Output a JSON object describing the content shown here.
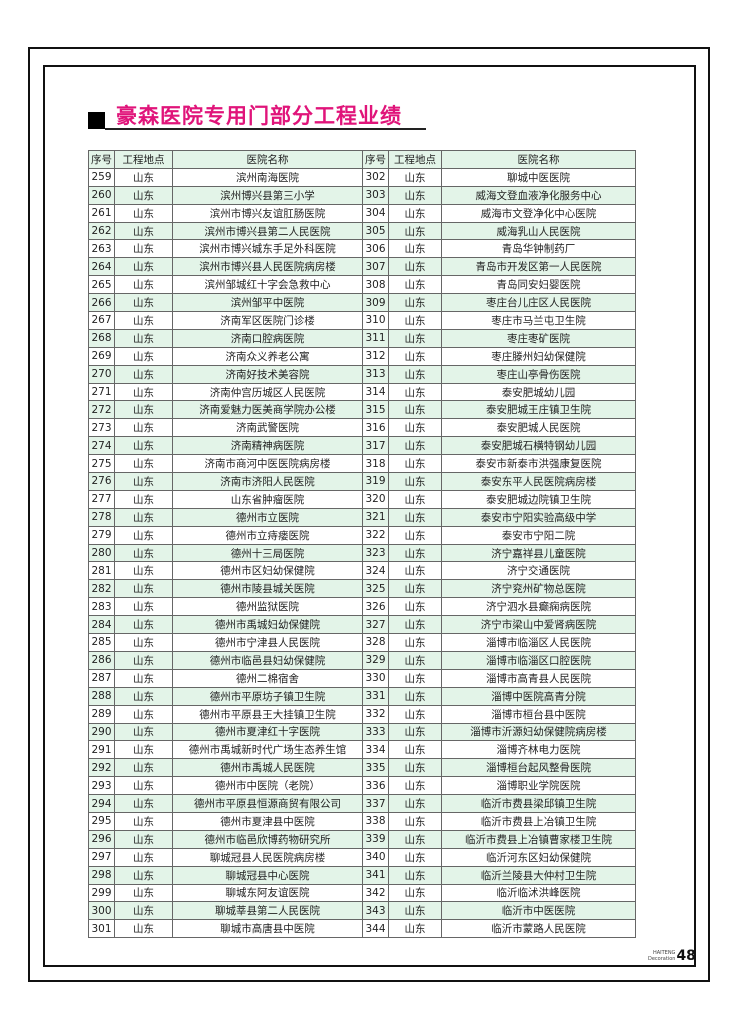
{
  "title": "豪森医院专用门部分工程业绩",
  "table": {
    "headers": [
      "序号",
      "工程地点",
      "医院名称",
      "序号",
      "工程地点",
      "医院名称"
    ],
    "rows": [
      [
        "259",
        "山东",
        "滨州南海医院",
        "302",
        "山东",
        "聊城中医医院"
      ],
      [
        "260",
        "山东",
        "滨州博兴县第三小学",
        "303",
        "山东",
        "威海文登血液净化服务中心"
      ],
      [
        "261",
        "山东",
        "滨州市博兴友谊肛肠医院",
        "304",
        "山东",
        "威海市文登净化中心医院"
      ],
      [
        "262",
        "山东",
        "滨州市博兴县第二人民医院",
        "305",
        "山东",
        "威海乳山人民医院"
      ],
      [
        "263",
        "山东",
        "滨州市博兴城东手足外科医院",
        "306",
        "山东",
        "青岛华钟制药厂"
      ],
      [
        "264",
        "山东",
        "滨州市博兴县人民医院病房楼",
        "307",
        "山东",
        "青岛市开发区第一人民医院"
      ],
      [
        "265",
        "山东",
        "滨州邹城红十字会急救中心",
        "308",
        "山东",
        "青岛同安妇婴医院"
      ],
      [
        "266",
        "山东",
        "滨州邹平中医院",
        "309",
        "山东",
        "枣庄台儿庄区人民医院"
      ],
      [
        "267",
        "山东",
        "济南军区医院门诊楼",
        "310",
        "山东",
        "枣庄市马兰屯卫生院"
      ],
      [
        "268",
        "山东",
        "济南口腔病医院",
        "311",
        "山东",
        "枣庄枣矿医院"
      ],
      [
        "269",
        "山东",
        "济南众义养老公寓",
        "312",
        "山东",
        "枣庄滕州妇幼保健院"
      ],
      [
        "270",
        "山东",
        "济南好技术美容院",
        "313",
        "山东",
        "枣庄山亭骨伤医院"
      ],
      [
        "271",
        "山东",
        "济南仲宫历城区人民医院",
        "314",
        "山东",
        "泰安肥城幼儿园"
      ],
      [
        "272",
        "山东",
        "济南爱魅力医美商学院办公楼",
        "315",
        "山东",
        "泰安肥城王庄镇卫生院"
      ],
      [
        "273",
        "山东",
        "济南武警医院",
        "316",
        "山东",
        "泰安肥城人民医院"
      ],
      [
        "274",
        "山东",
        "济南精神病医院",
        "317",
        "山东",
        "泰安肥城石横特钢幼儿园"
      ],
      [
        "275",
        "山东",
        "济南市商河中医医院病房楼",
        "318",
        "山东",
        "泰安市新泰市洪强康复医院"
      ],
      [
        "276",
        "山东",
        "济南市济阳人民医院",
        "319",
        "山东",
        "泰安东平人民医院病房楼"
      ],
      [
        "277",
        "山东",
        "山东省肿瘤医院",
        "320",
        "山东",
        "泰安肥城边院镇卫生院"
      ],
      [
        "278",
        "山东",
        "德州市立医院",
        "321",
        "山东",
        "泰安市宁阳实验高级中学"
      ],
      [
        "279",
        "山东",
        "德州市立痔瘘医院",
        "322",
        "山东",
        "泰安市宁阳二院"
      ],
      [
        "280",
        "山东",
        "德州十三局医院",
        "323",
        "山东",
        "济宁嘉祥县儿童医院"
      ],
      [
        "281",
        "山东",
        "德州市区妇幼保健院",
        "324",
        "山东",
        "济宁交通医院"
      ],
      [
        "282",
        "山东",
        "德州市陵县城关医院",
        "325",
        "山东",
        "济宁兖州矿物总医院"
      ],
      [
        "283",
        "山东",
        "德州监狱医院",
        "326",
        "山东",
        "济宁泗水县癫痫病医院"
      ],
      [
        "284",
        "山东",
        "德州市禹城妇幼保健院",
        "327",
        "山东",
        "济宁市梁山中爱肾病医院"
      ],
      [
        "285",
        "山东",
        "德州市宁津县人民医院",
        "328",
        "山东",
        "淄博市临淄区人民医院"
      ],
      [
        "286",
        "山东",
        "德州市临邑县妇幼保健院",
        "329",
        "山东",
        "淄博市临淄区口腔医院"
      ],
      [
        "287",
        "山东",
        "德州二棉宿舍",
        "330",
        "山东",
        "淄博市高青县人民医院"
      ],
      [
        "288",
        "山东",
        "德州市平原坊子镇卫生院",
        "331",
        "山东",
        "淄博中医院高青分院"
      ],
      [
        "289",
        "山东",
        "德州市平原县王大挂镇卫生院",
        "332",
        "山东",
        "淄博市桓台县中医院"
      ],
      [
        "290",
        "山东",
        "德州市夏津红十字医院",
        "333",
        "山东",
        "淄博市沂源妇幼保健院病房楼"
      ],
      [
        "291",
        "山东",
        "德州市禹城新时代广场生态养生馆",
        "334",
        "山东",
        "淄博齐林电力医院"
      ],
      [
        "292",
        "山东",
        "德州市禹城人民医院",
        "335",
        "山东",
        "淄博桓台起风整骨医院"
      ],
      [
        "293",
        "山东",
        "德州市中医院（老院）",
        "336",
        "山东",
        "淄博职业学院医院"
      ],
      [
        "294",
        "山东",
        "德州市平原县恒源商贸有限公司",
        "337",
        "山东",
        "临沂市费县梁邱镇卫生院"
      ],
      [
        "295",
        "山东",
        "德州市夏津县中医院",
        "338",
        "山东",
        "临沂市费县上冶镇卫生院"
      ],
      [
        "296",
        "山东",
        "德州市临邑欣博药物研究所",
        "339",
        "山东",
        "临沂市费县上冶镇曹家楼卫生院"
      ],
      [
        "297",
        "山东",
        "聊城冠县人民医院病房楼",
        "340",
        "山东",
        "临沂河东区妇幼保健院"
      ],
      [
        "298",
        "山东",
        "聊城冠县中心医院",
        "341",
        "山东",
        "临沂兰陵县大仲村卫生院"
      ],
      [
        "299",
        "山东",
        "聊城东阿友谊医院",
        "342",
        "山东",
        "临沂临沭洪峰医院"
      ],
      [
        "300",
        "山东",
        "聊城莘县第二人民医院",
        "343",
        "山东",
        "临沂市中医医院"
      ],
      [
        "301",
        "山东",
        "聊城市高唐县中医院",
        "344",
        "山东",
        "临沂市蒙路人民医院"
      ]
    ]
  },
  "footer": {
    "brand_line1": "HAITENG",
    "brand_line2": "Decoration",
    "page_number": "48"
  },
  "colors": {
    "title": "#e0147a",
    "row_highlight": "#e3f4e8"
  }
}
